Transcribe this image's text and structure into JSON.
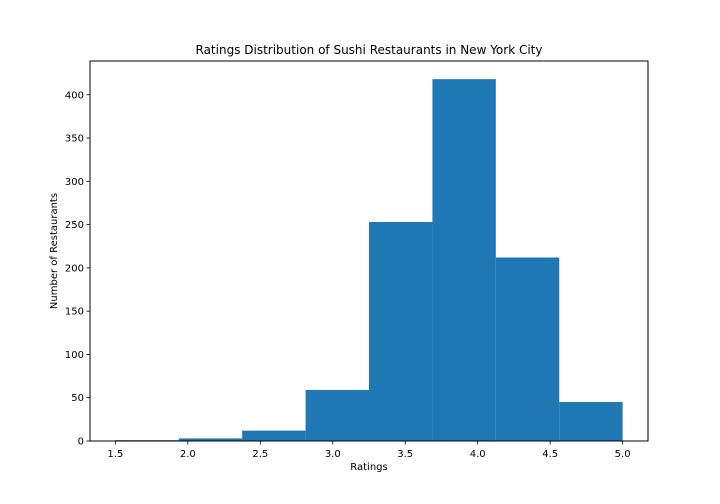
{
  "chart_data": {
    "type": "bar",
    "subtype": "histogram",
    "title": "Ratings Distribution of Sushi Restaurants in New York City",
    "xlabel": "Ratings",
    "ylabel": "Number of Restaurants",
    "bins": [
      {
        "start": 1.5,
        "end": 1.9375,
        "count": 1
      },
      {
        "start": 1.9375,
        "end": 2.375,
        "count": 3
      },
      {
        "start": 2.375,
        "end": 2.8125,
        "count": 12
      },
      {
        "start": 2.8125,
        "end": 3.25,
        "count": 59
      },
      {
        "start": 3.25,
        "end": 3.6875,
        "count": 253
      },
      {
        "start": 3.6875,
        "end": 4.125,
        "count": 418
      },
      {
        "start": 4.125,
        "end": 4.5625,
        "count": 212
      },
      {
        "start": 4.5625,
        "end": 5.0,
        "count": 45
      }
    ],
    "xlim": [
      1.325,
      5.175
    ],
    "ylim": [
      0,
      439
    ],
    "xticks": [
      "1.5",
      "2.0",
      "2.5",
      "3.0",
      "3.5",
      "4.0",
      "4.5",
      "5.0"
    ],
    "yticks": [
      "0",
      "50",
      "100",
      "150",
      "200",
      "250",
      "300",
      "350",
      "400"
    ],
    "bar_color": "#1f77b4",
    "grid": false,
    "legend": "none"
  }
}
